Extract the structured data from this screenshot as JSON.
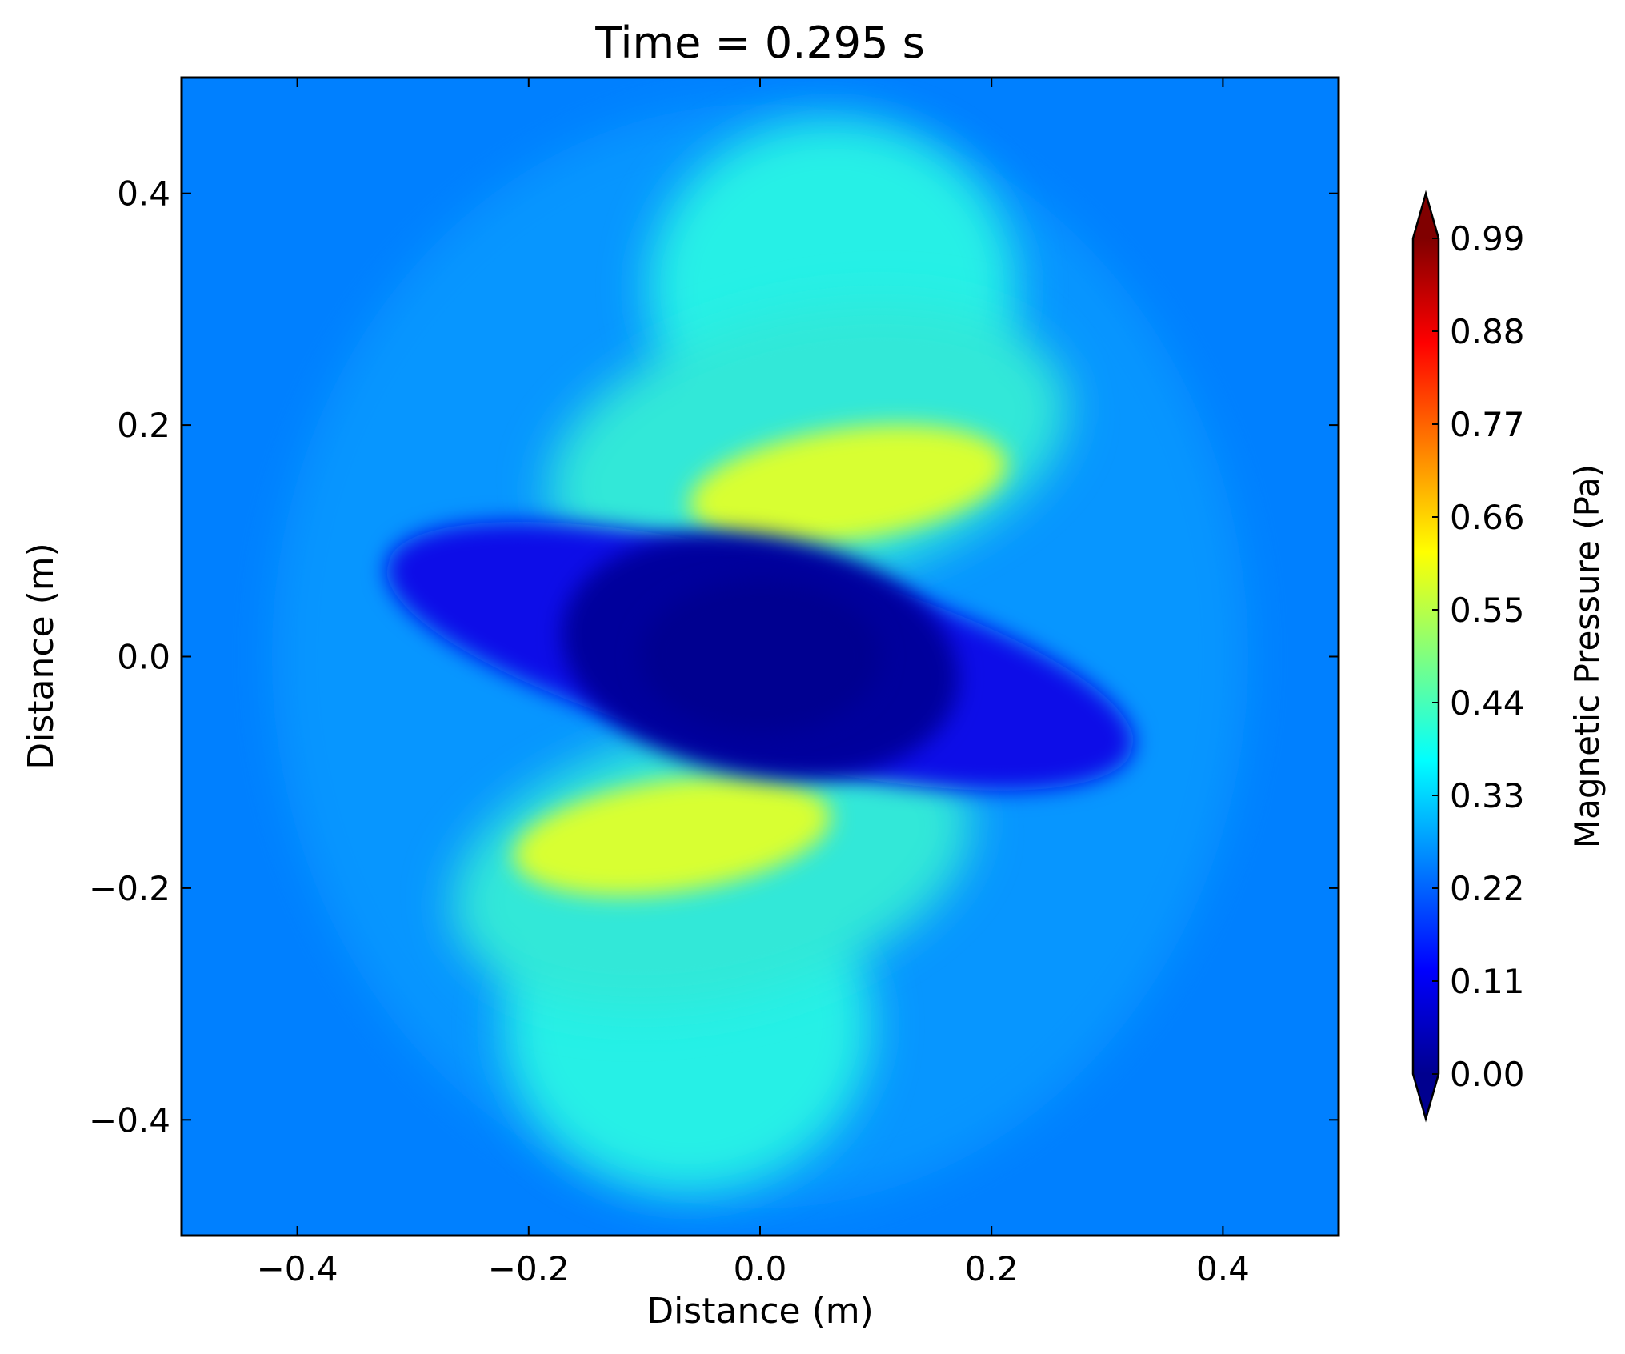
{
  "chart_data": {
    "type": "heatmap",
    "title": "Time = 0.295 s",
    "xlabel": "Distance (m)",
    "ylabel": "Distance (m)",
    "xlim": [
      -0.5,
      0.5
    ],
    "ylim": [
      -0.5,
      0.5
    ],
    "x_ticks": [
      -0.4,
      -0.2,
      0.0,
      0.2,
      0.4
    ],
    "x_tick_labels": [
      "−0.4",
      "−0.2",
      "0.0",
      "0.2",
      "0.4"
    ],
    "y_ticks": [
      -0.4,
      -0.2,
      0.0,
      0.2,
      0.4
    ],
    "y_tick_labels": [
      "−0.4",
      "−0.2",
      "0.0",
      "0.2",
      "0.4"
    ],
    "grid": false,
    "colormap": "jet",
    "colorbar": {
      "label": "Magnetic Pressure (Pa)",
      "range": [
        0.0,
        0.99
      ],
      "extend": "both",
      "ticks": [
        0.0,
        0.11,
        0.22,
        0.33,
        0.44,
        0.55,
        0.66,
        0.77,
        0.88,
        0.99
      ],
      "tick_labels": [
        "0.00",
        "0.11",
        "0.22",
        "0.33",
        "0.44",
        "0.55",
        "0.66",
        "0.77",
        "0.88",
        "0.99"
      ]
    },
    "background_value": 0.22,
    "features": [
      {
        "center": [
          0.0,
          0.0
        ],
        "value": 0.0
      },
      {
        "center": [
          0.07,
          0.16
        ],
        "value": 0.6
      },
      {
        "center": [
          -0.07,
          -0.16
        ],
        "value": 0.6
      },
      {
        "center": [
          0.08,
          0.34
        ],
        "value": 0.38
      },
      {
        "center": [
          -0.08,
          -0.34
        ],
        "value": 0.38
      },
      {
        "center": [
          -0.27,
          0.05
        ],
        "value": 0.08
      },
      {
        "center": [
          0.27,
          -0.05
        ],
        "value": 0.08
      }
    ]
  }
}
